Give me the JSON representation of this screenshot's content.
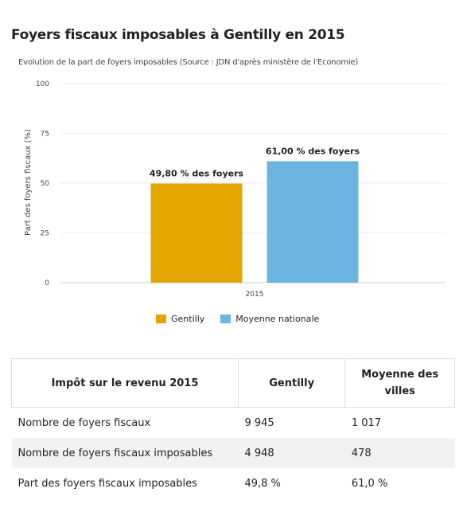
{
  "header": {
    "title": "Foyers fiscaux imposables à Gentilly en 2015"
  },
  "chart_data": {
    "type": "bar",
    "subtitle": "Evolution de la part de foyers imposables (Source : JDN d'après ministère de l'Economie)",
    "ylabel": "Part des foyers fiscaux (%)",
    "xlabel": "",
    "ylim": [
      0,
      100
    ],
    "yticks": [
      0,
      25,
      50,
      75,
      100
    ],
    "categories": [
      "2015"
    ],
    "grid": true,
    "legend_position": "bottom",
    "series": [
      {
        "name": "Gentilly",
        "values": [
          49.8
        ],
        "labels": [
          "49,80 % des foyers"
        ],
        "color": "#e3a500"
      },
      {
        "name": "Moyenne nationale",
        "values": [
          61.0
        ],
        "labels": [
          "61,00 % des foyers"
        ],
        "color": "#6ab4e2"
      }
    ]
  },
  "table": {
    "headers": [
      "Impôt sur le revenu 2015",
      "Gentilly",
      "Moyenne des villes"
    ],
    "rows": [
      [
        "Nombre de foyers fiscaux",
        "9 945",
        "1 017"
      ],
      [
        "Nombre de foyers fiscaux imposables",
        "4 948",
        "478"
      ],
      [
        "Part des foyers fiscaux imposables",
        "49,8 %",
        "61,0 %"
      ]
    ]
  }
}
